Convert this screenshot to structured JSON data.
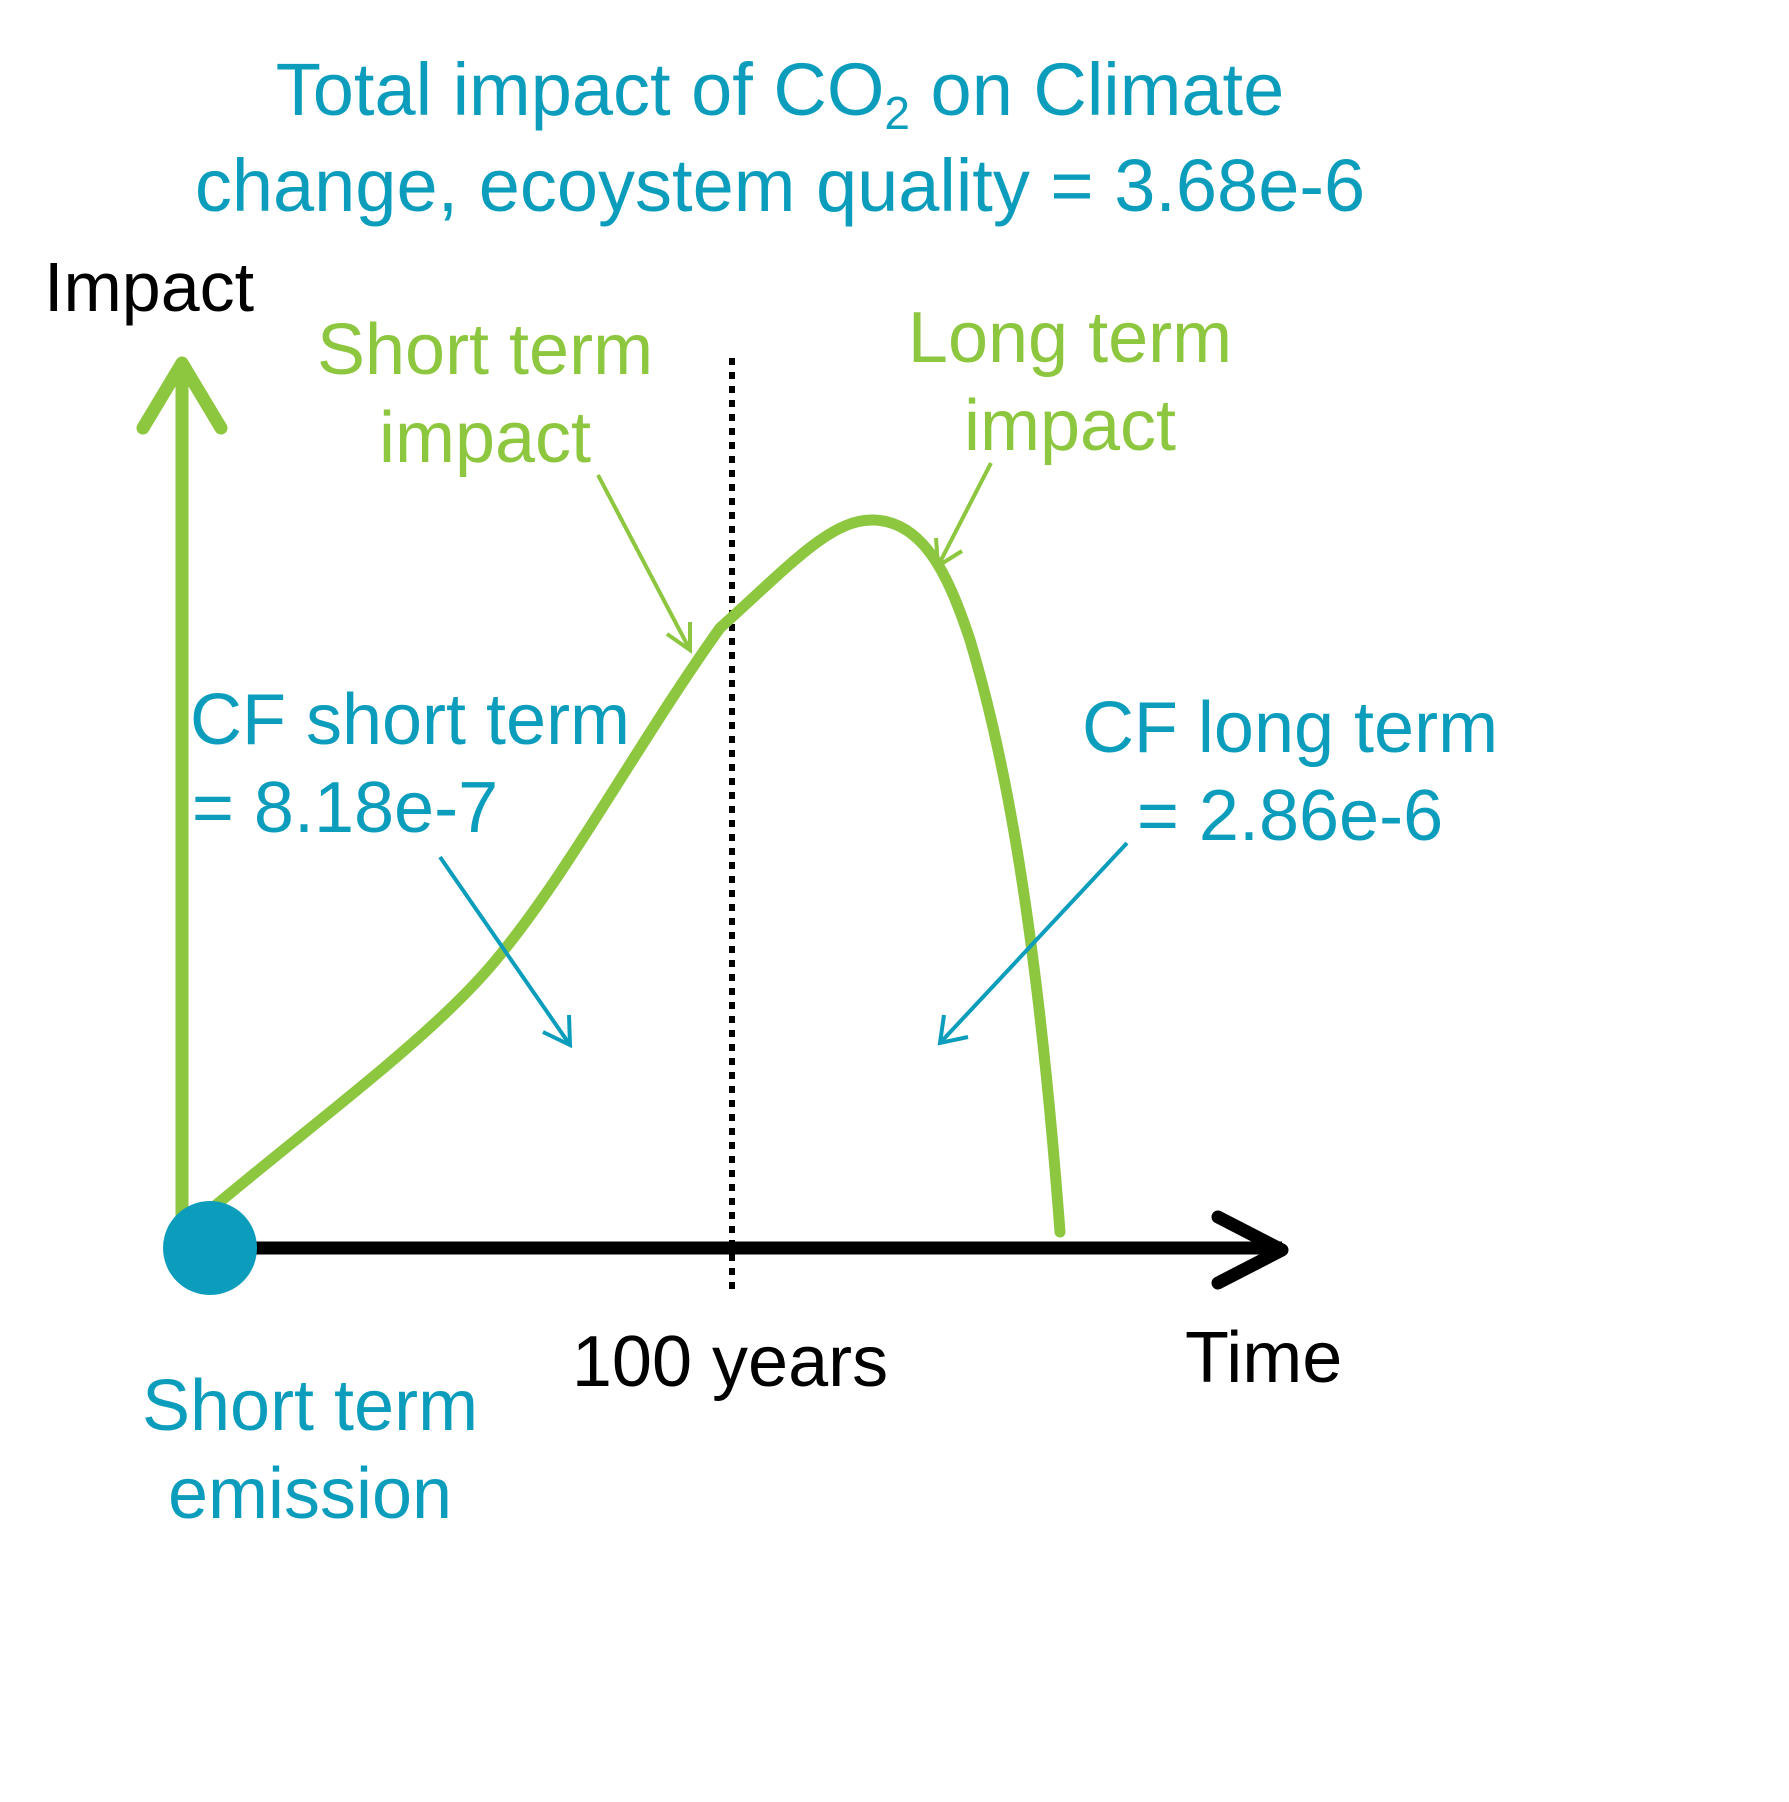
{
  "title": {
    "line1_before_sub": "Total impact of CO",
    "line1_sub": "2",
    "line1_after_sub": " on Climate",
    "line2": "change, ecoystem quality = 3.68e-6"
  },
  "axis": {
    "y_label": "Impact",
    "x_label": "Time",
    "divider_label": "100 years"
  },
  "annotations": {
    "short_term_impact": [
      "Short term",
      "impact"
    ],
    "long_term_impact": [
      "Long term",
      "impact"
    ],
    "cf_short_term": [
      "CF short term",
      "= 8.18e-7"
    ],
    "cf_long_term": [
      "CF long term",
      "= 2.86e-6"
    ],
    "origin": [
      "Short term",
      "emission"
    ]
  },
  "colors": {
    "teal": "#0b9dbb",
    "green": "#8dc63f",
    "black": "#000000"
  }
}
